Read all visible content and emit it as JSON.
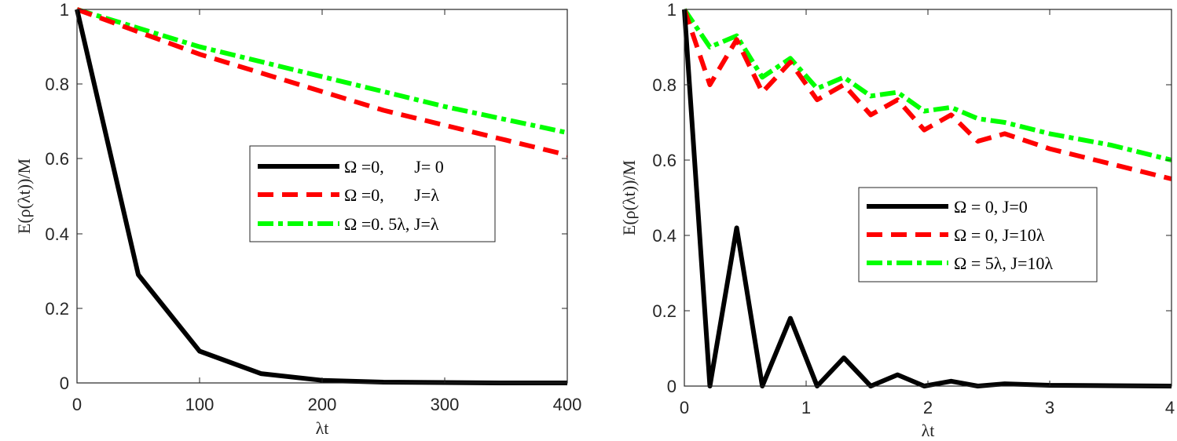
{
  "chart_data": [
    {
      "type": "line",
      "xlabel": "λt",
      "ylabel": "E(ρ(λt))/M",
      "xlim": [
        0,
        400
      ],
      "ylim": [
        0,
        1
      ],
      "xticks": [
        "0",
        "100",
        "200",
        "300",
        "400"
      ],
      "yticks": [
        "0",
        "0.2",
        "0.4",
        "0.6",
        "0.8",
        "1"
      ],
      "x": [
        0,
        50,
        100,
        150,
        200,
        250,
        300,
        350,
        400
      ],
      "series": [
        {
          "name": "Ω =0,       J= 0",
          "color": "#000000",
          "style": "solid",
          "values": [
            1.0,
            0.29,
            0.085,
            0.025,
            0.007,
            0.002,
            0.001,
            0.0,
            0.0
          ]
        },
        {
          "name": "Ω =0,       J=λ",
          "color": "#ff0000",
          "style": "dashed",
          "values": [
            1.0,
            0.94,
            0.88,
            0.83,
            0.78,
            0.73,
            0.69,
            0.65,
            0.61
          ]
        },
        {
          "name": "Ω =0. 5λ, J=λ",
          "color": "#00ff00",
          "style": "dashdot",
          "values": [
            1.0,
            0.95,
            0.9,
            0.86,
            0.82,
            0.78,
            0.74,
            0.705,
            0.67
          ]
        }
      ]
    },
    {
      "type": "line",
      "xlabel": "λt",
      "ylabel": "E(ρ(λt))/M",
      "xlim": [
        0,
        4
      ],
      "ylim": [
        0,
        1
      ],
      "xticks": [
        "0",
        "1",
        "2",
        "3",
        "4"
      ],
      "yticks": [
        "0",
        "0.2",
        "0.4",
        "0.6",
        "0.8",
        "1"
      ],
      "x": [
        0,
        0.21,
        0.43,
        0.64,
        0.87,
        1.09,
        1.31,
        1.53,
        1.75,
        1.97,
        2.19,
        2.41,
        2.63,
        3.0,
        3.5,
        4.0
      ],
      "series": [
        {
          "name": "Ω = 0, J=0",
          "color": "#000000",
          "style": "solid",
          "values": [
            1.0,
            0.0,
            0.42,
            0.0,
            0.18,
            0.0,
            0.075,
            0.0,
            0.03,
            0.0,
            0.013,
            0.0,
            0.006,
            0.002,
            0.001,
            0.0
          ]
        },
        {
          "name": "Ω = 0, J=10λ",
          "color": "#ff0000",
          "style": "dashed",
          "values": [
            1.0,
            0.8,
            0.92,
            0.78,
            0.86,
            0.76,
            0.8,
            0.72,
            0.76,
            0.68,
            0.72,
            0.65,
            0.67,
            0.63,
            0.59,
            0.55
          ]
        },
        {
          "name": "Ω = 5λ, J=10λ",
          "color": "#00ff00",
          "style": "dashdot",
          "values": [
            1.0,
            0.9,
            0.93,
            0.82,
            0.87,
            0.79,
            0.82,
            0.77,
            0.78,
            0.73,
            0.74,
            0.71,
            0.7,
            0.67,
            0.64,
            0.6
          ]
        }
      ]
    }
  ]
}
